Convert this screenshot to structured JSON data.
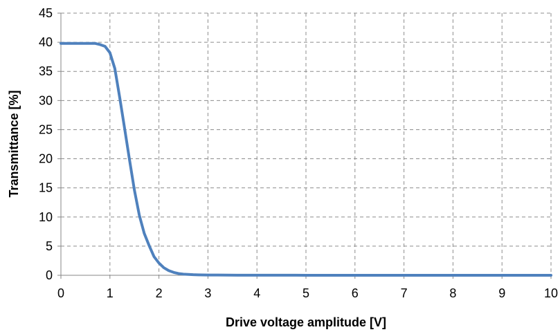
{
  "chart_data": {
    "type": "line",
    "title": "",
    "xlabel": "Drive voltage amplitude  [V]",
    "ylabel": "Transmittance [%]",
    "xlim": [
      0,
      10
    ],
    "ylim": [
      0,
      45
    ],
    "x_ticks": [
      0,
      1,
      2,
      3,
      4,
      5,
      6,
      7,
      8,
      9,
      10
    ],
    "y_ticks": [
      0,
      5,
      10,
      15,
      20,
      25,
      30,
      35,
      40,
      45
    ],
    "grid": true,
    "legend": "none",
    "series": [
      {
        "color": "#4f81bd",
        "x": [
          0,
          0.1,
          0.2,
          0.3,
          0.4,
          0.5,
          0.6,
          0.7,
          0.8,
          0.9,
          1.0,
          1.1,
          1.2,
          1.3,
          1.4,
          1.5,
          1.6,
          1.7,
          1.8,
          1.9,
          2.0,
          2.1,
          2.2,
          2.3,
          2.4,
          2.5,
          2.6,
          2.7,
          2.8,
          2.9,
          3.0,
          3.2,
          3.4,
          3.6,
          3.8,
          4.0,
          4.2,
          4.4,
          4.6,
          4.8,
          5.0,
          5.5,
          6.0,
          6.5,
          7.0,
          7.5,
          8.0,
          8.5,
          9.0,
          9.5,
          10.0
        ],
        "y": [
          39.8,
          39.8,
          39.8,
          39.8,
          39.8,
          39.8,
          39.8,
          39.8,
          39.6,
          39.3,
          38.2,
          35.5,
          30.5,
          25.2,
          19.8,
          14.6,
          10.3,
          7.2,
          5.1,
          3.2,
          2.1,
          1.3,
          0.8,
          0.5,
          0.3,
          0.2,
          0.15,
          0.1,
          0.08,
          0.06,
          0.05,
          0.04,
          0.03,
          0.02,
          0.02,
          0.01,
          0.01,
          0.01,
          0.01,
          0.01,
          0.0,
          0.0,
          0.0,
          0.0,
          0.0,
          0.0,
          0.0,
          0.0,
          0.0,
          0.0,
          0.0
        ]
      }
    ]
  }
}
